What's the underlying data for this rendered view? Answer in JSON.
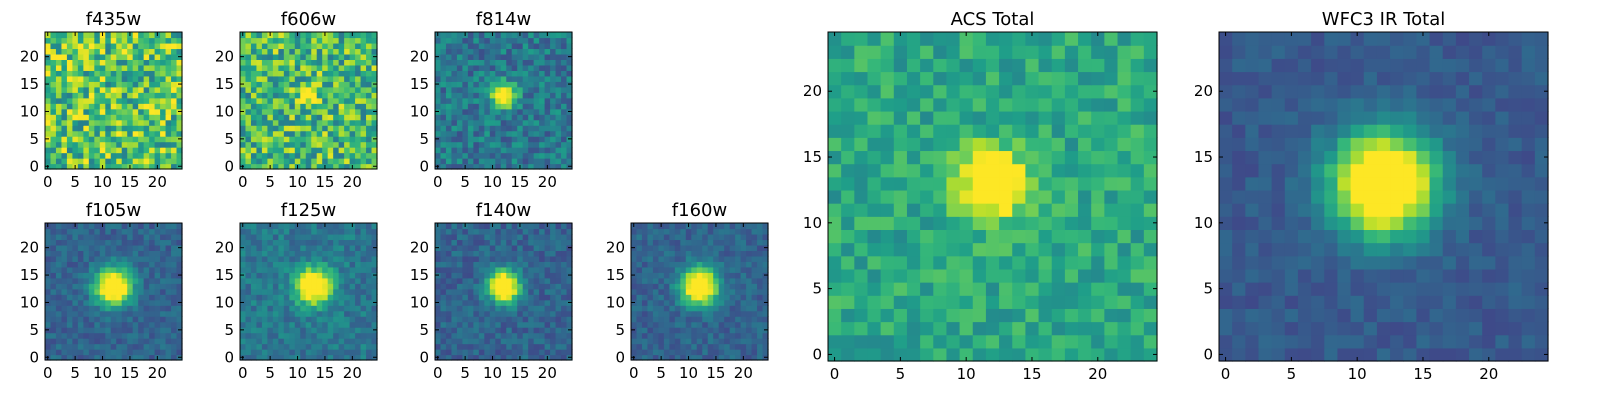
{
  "figure": "Cutout stamps of a source in ACS and WFC3 IR filters with stacked totals",
  "chart_data": [
    {
      "type": "heatmap",
      "title": "f435w",
      "colormap": "viridis",
      "grid_size": 25,
      "source": {
        "x": 12,
        "y": 13,
        "radius": 0,
        "amplitude": 0.0
      },
      "noise": 0.3,
      "base": 0.72,
      "seed": 11,
      "xticks": [
        0,
        5,
        10,
        15,
        20
      ],
      "yticks": [
        0,
        5,
        10,
        15,
        20
      ],
      "xlim": [
        0,
        24
      ],
      "ylim": [
        0,
        24
      ]
    },
    {
      "type": "heatmap",
      "title": "f606w",
      "colormap": "viridis",
      "grid_size": 25,
      "source": {
        "x": 12,
        "y": 13,
        "radius": 1.2,
        "amplitude": 0.3
      },
      "noise": 0.28,
      "base": 0.68,
      "seed": 23,
      "xticks": [
        0,
        5,
        10,
        15,
        20
      ],
      "yticks": [
        0,
        5,
        10,
        15,
        20
      ],
      "xlim": [
        0,
        24
      ],
      "ylim": [
        0,
        24
      ]
    },
    {
      "type": "heatmap",
      "title": "f814w",
      "colormap": "viridis",
      "grid_size": 25,
      "source": {
        "x": 12,
        "y": 13,
        "radius": 1.5,
        "amplitude": 0.55
      },
      "noise": 0.16,
      "base": 0.4,
      "seed": 37,
      "xticks": [
        0,
        5,
        10,
        15,
        20
      ],
      "yticks": [
        0,
        5,
        10,
        15,
        20
      ],
      "xlim": [
        0,
        24
      ],
      "ylim": [
        0,
        24
      ]
    },
    {
      "type": "heatmap",
      "title": "f105w",
      "colormap": "viridis",
      "grid_size": 25,
      "source": {
        "x": 12,
        "y": 13,
        "radius": 2.3,
        "amplitude": 0.65
      },
      "noise": 0.09,
      "base": 0.32,
      "seed": 41,
      "xticks": [
        0,
        5,
        10,
        15,
        20
      ],
      "yticks": [
        0,
        5,
        10,
        15,
        20
      ],
      "xlim": [
        0,
        24
      ],
      "ylim": [
        0,
        24
      ]
    },
    {
      "type": "heatmap",
      "title": "f125w",
      "colormap": "viridis",
      "grid_size": 25,
      "source": {
        "x": 13,
        "y": 13,
        "radius": 2.3,
        "amplitude": 0.55
      },
      "noise": 0.11,
      "base": 0.4,
      "seed": 53,
      "xticks": [
        0,
        5,
        10,
        15,
        20
      ],
      "yticks": [
        0,
        5,
        10,
        15,
        20
      ],
      "xlim": [
        0,
        24
      ],
      "ylim": [
        0,
        24
      ]
    },
    {
      "type": "heatmap",
      "title": "f140w",
      "colormap": "viridis",
      "grid_size": 25,
      "source": {
        "x": 12,
        "y": 13,
        "radius": 2.0,
        "amplitude": 0.65
      },
      "noise": 0.1,
      "base": 0.32,
      "seed": 67,
      "xticks": [
        0,
        5,
        10,
        15,
        20
      ],
      "yticks": [
        0,
        5,
        10,
        15,
        20
      ],
      "xlim": [
        0,
        24
      ],
      "ylim": [
        0,
        24
      ]
    },
    {
      "type": "heatmap",
      "title": "f160w",
      "colormap": "viridis",
      "grid_size": 25,
      "source": {
        "x": 12,
        "y": 13,
        "radius": 2.3,
        "amplitude": 0.65
      },
      "noise": 0.09,
      "base": 0.32,
      "seed": 79,
      "xticks": [
        0,
        5,
        10,
        15,
        20
      ],
      "yticks": [
        0,
        5,
        10,
        15,
        20
      ],
      "xlim": [
        0,
        24
      ],
      "ylim": [
        0,
        24
      ]
    },
    {
      "type": "heatmap",
      "title": "ACS Total",
      "colormap": "viridis",
      "grid_size": 25,
      "source": {
        "x": 12,
        "y": 13,
        "radius": 1.8,
        "amplitude": 0.45
      },
      "noise": 0.13,
      "base": 0.6,
      "seed": 97,
      "xticks": [
        0,
        5,
        10,
        15,
        20
      ],
      "yticks": [
        0,
        5,
        10,
        15,
        20
      ],
      "xlim": [
        0,
        24
      ],
      "ylim": [
        0,
        24
      ]
    },
    {
      "type": "heatmap",
      "title": "WFC3 IR Total",
      "colormap": "viridis",
      "grid_size": 25,
      "source": {
        "x": 12,
        "y": 13,
        "radius": 2.7,
        "amplitude": 0.7
      },
      "noise": 0.06,
      "base": 0.28,
      "seed": 113,
      "xticks": [
        0,
        5,
        10,
        15,
        20
      ],
      "yticks": [
        0,
        5,
        10,
        15,
        20
      ],
      "xlim": [
        0,
        24
      ],
      "ylim": [
        0,
        24
      ]
    }
  ]
}
